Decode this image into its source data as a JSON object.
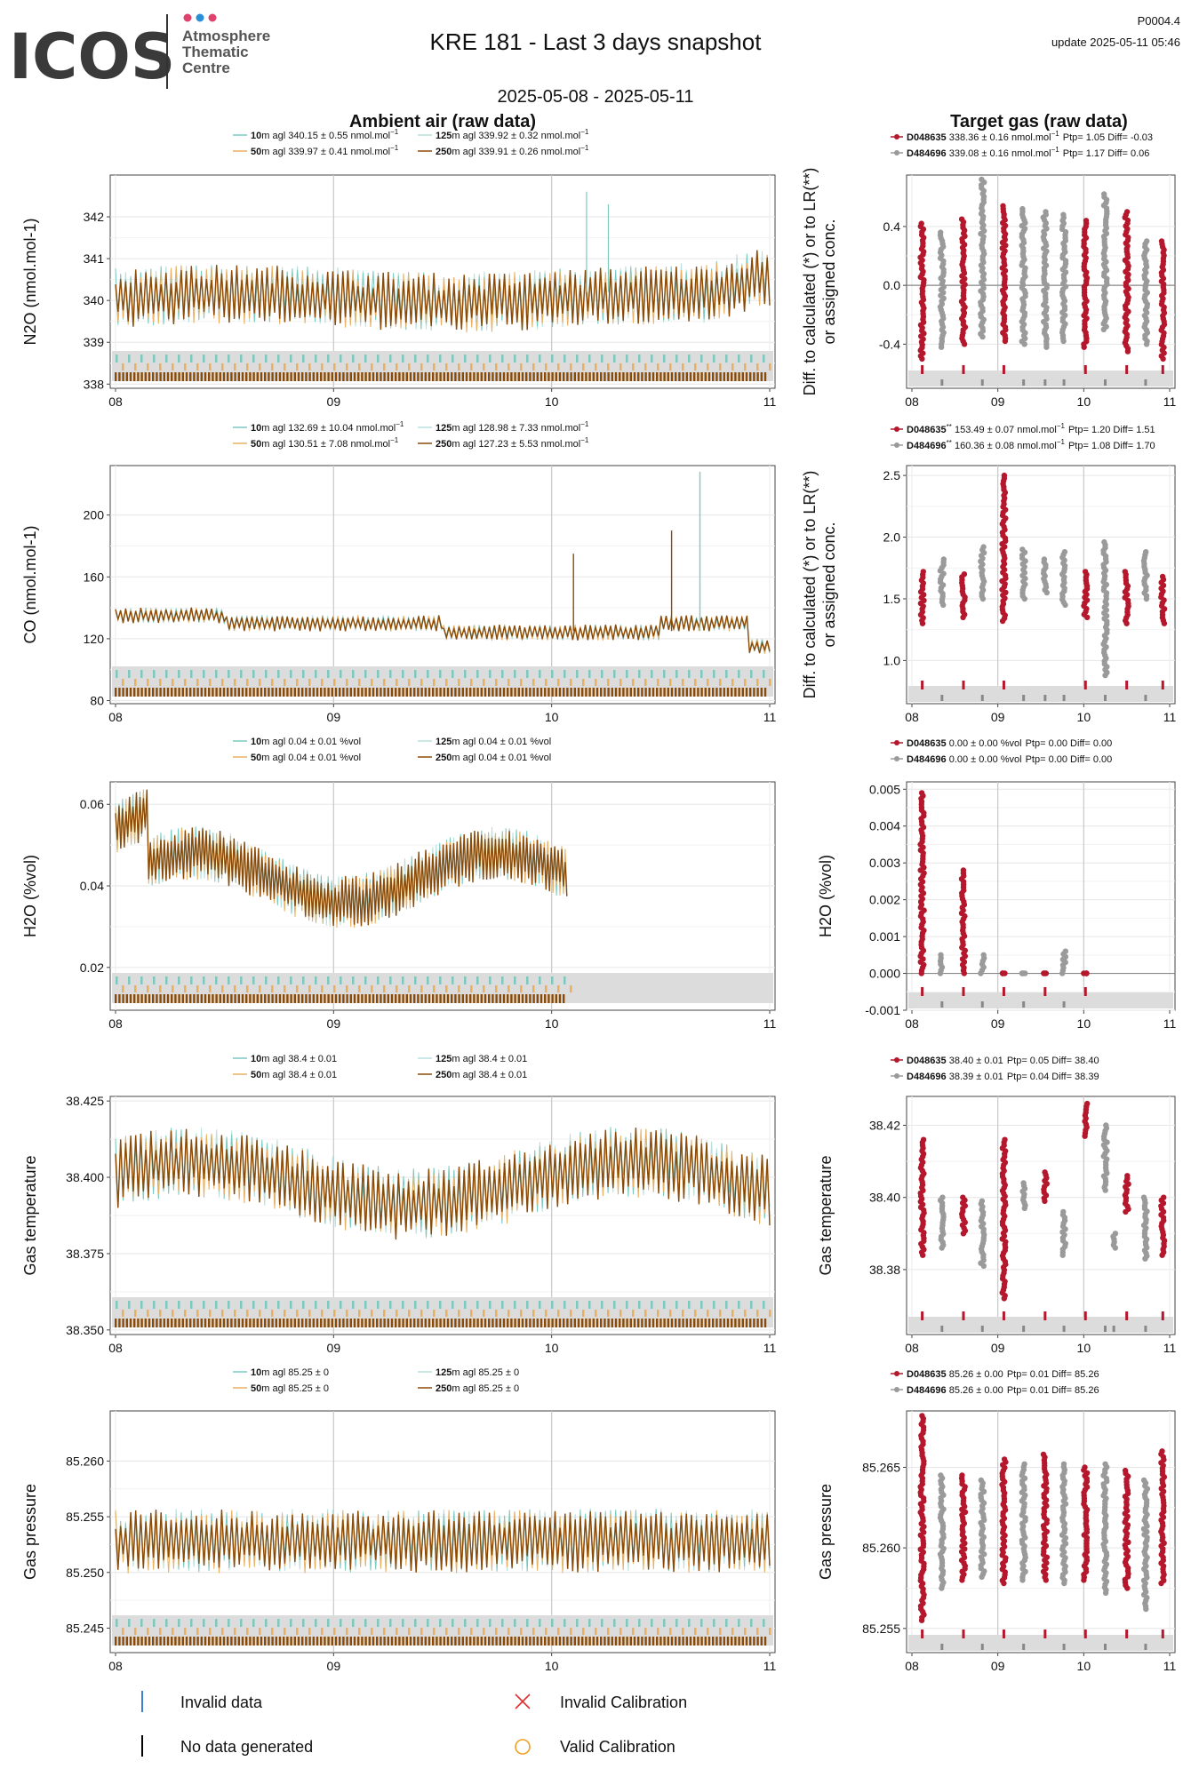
{
  "header": {
    "logo_text": "ICOS",
    "logo_sub": [
      "Atmosphere",
      "Thematic",
      "Centre"
    ],
    "title": "KRE 181 - Last 3 days snapshot",
    "date_range": "2025-05-08 - 2025-05-11",
    "product_id": "P0004.4",
    "update_label": "update  2025-05-11 05:46",
    "left_heading": "Ambient air (raw data)",
    "right_heading": "Target gas (raw data)"
  },
  "colors": {
    "agl10": "#7cc9c0",
    "agl50": "#e8b063",
    "agl125": "#b9e0dc",
    "agl250": "#8a4b08",
    "tank1": "#b5172c",
    "tank2": "#9a9a9a",
    "invalid": "#3a7fd0",
    "nodata": "#000000",
    "invalid_cal": "#e03030",
    "valid_cal": "#f0a020",
    "band": "#dcdcdc"
  },
  "bottom_legend": {
    "invalid_data": "Invalid data",
    "no_data": "No data generated",
    "invalid_cal": "Invalid Calibration",
    "valid_cal": "Valid Calibration"
  },
  "chart_data": [
    {
      "id": "n2o-ambient",
      "type": "line",
      "ylabel": "N2O (nmol.mol-1)",
      "xticks": [
        "08",
        "09",
        "10",
        "11"
      ],
      "xlim": [
        0,
        3
      ],
      "ylim": [
        337.9,
        343.0
      ],
      "yticks": [
        338,
        339,
        340,
        341,
        342
      ],
      "band_end": 3,
      "base": 340.05,
      "amp": 0.55,
      "legend": [
        {
          "height": "10",
          "text": "m agl 340.15 ± 0.55 nmol.mol",
          "sup": "−1"
        },
        {
          "height": "125",
          "text": "m agl 339.92 ± 0.32 nmol.mol",
          "sup": "−1"
        },
        {
          "height": "50",
          "text": "m agl 339.97 ± 0.41 nmol.mol",
          "sup": "−1"
        },
        {
          "height": "250",
          "text": "m agl 339.91 ± 0.26 nmol.mol",
          "sup": "−1"
        }
      ]
    },
    {
      "id": "n2o-target",
      "type": "scatter",
      "ylabel": "Diff. to calculated (*) or to LR(**)",
      "ylabel2": "or assigned conc.",
      "xticks": [
        "08",
        "09",
        "10",
        "11"
      ],
      "xlim": [
        0,
        3
      ],
      "ylim": [
        -0.7,
        0.75
      ],
      "yticks": [
        -0.4,
        0.0,
        0.4
      ],
      "ytick_labels": [
        "-0.4",
        "0.0",
        "0.4"
      ],
      "zero_line": 0.0,
      "legend": [
        {
          "tank": "D048635",
          "text": "338.36 ± 0.16 nmol.mol",
          "sup": "−1",
          "extra": "Ptp= 1.05 Diff= -0.03"
        },
        {
          "tank": "D484696",
          "text": "339.08 ± 0.16 nmol.mol",
          "sup": "−1",
          "extra": "Ptp= 1.17 Diff= 0.06"
        }
      ],
      "groups": [
        {
          "x": 0.12,
          "tank": 1,
          "lo": -0.5,
          "hi": 0.42
        },
        {
          "x": 0.35,
          "tank": 2,
          "lo": -0.42,
          "hi": 0.36
        },
        {
          "x": 0.6,
          "tank": 1,
          "lo": -0.4,
          "hi": 0.45
        },
        {
          "x": 0.82,
          "tank": 2,
          "lo": -0.35,
          "hi": 0.72
        },
        {
          "x": 1.07,
          "tank": 1,
          "lo": -0.38,
          "hi": 0.54
        },
        {
          "x": 1.3,
          "tank": 2,
          "lo": -0.4,
          "hi": 0.52
        },
        {
          "x": 1.55,
          "tank": 2,
          "lo": -0.42,
          "hi": 0.5
        },
        {
          "x": 1.77,
          "tank": 2,
          "lo": -0.38,
          "hi": 0.48
        },
        {
          "x": 2.02,
          "tank": 1,
          "lo": -0.42,
          "hi": 0.44
        },
        {
          "x": 2.25,
          "tank": 2,
          "lo": -0.3,
          "hi": 0.62
        },
        {
          "x": 2.5,
          "tank": 1,
          "lo": -0.45,
          "hi": 0.5
        },
        {
          "x": 2.72,
          "tank": 2,
          "lo": -0.4,
          "hi": 0.3
        },
        {
          "x": 2.92,
          "tank": 1,
          "lo": -0.5,
          "hi": 0.3
        }
      ]
    },
    {
      "id": "co-ambient",
      "type": "line",
      "ylabel": "CO (nmol.mol-1)",
      "xticks": [
        "08",
        "09",
        "10",
        "11"
      ],
      "xlim": [
        0,
        3
      ],
      "ylim": [
        78,
        232
      ],
      "yticks": [
        80,
        120,
        160,
        200
      ],
      "band_end": 3,
      "base": 130,
      "amp": 4,
      "legend": [
        {
          "height": "10",
          "text": "m agl 132.69 ± 10.04 nmol.mol",
          "sup": "−1"
        },
        {
          "height": "125",
          "text": "m agl 128.98 ± 7.33 nmol.mol",
          "sup": "−1"
        },
        {
          "height": "50",
          "text": "m agl 130.51 ± 7.08 nmol.mol",
          "sup": "−1"
        },
        {
          "height": "250",
          "text": "m agl 127.23 ± 5.53 nmol.mol",
          "sup": "−1"
        }
      ]
    },
    {
      "id": "co-target",
      "type": "scatter",
      "ylabel": "Diff. to calculated (*) or to LR(**)",
      "ylabel2": "or assigned conc.",
      "xticks": [
        "08",
        "09",
        "10",
        "11"
      ],
      "xlim": [
        0,
        3
      ],
      "ylim": [
        0.65,
        2.58
      ],
      "yticks": [
        1.0,
        1.5,
        2.0,
        2.5
      ],
      "ytick_labels": [
        "1.0",
        "1.5",
        "2.0",
        "2.5"
      ],
      "legend": [
        {
          "tank": "D048635",
          "stars": "**",
          "text": "153.49 ± 0.07 nmol.mol",
          "sup": "−1",
          "extra": "Ptp= 1.20 Diff= 1.51"
        },
        {
          "tank": "D484696",
          "stars": "**",
          "text": "160.36 ± 0.08 nmol.mol",
          "sup": "−1",
          "extra": "Ptp= 1.08 Diff= 1.70"
        }
      ],
      "groups": [
        {
          "x": 0.12,
          "tank": 1,
          "lo": 1.3,
          "hi": 1.72
        },
        {
          "x": 0.35,
          "tank": 2,
          "lo": 1.45,
          "hi": 1.82
        },
        {
          "x": 0.6,
          "tank": 1,
          "lo": 1.35,
          "hi": 1.7
        },
        {
          "x": 0.82,
          "tank": 2,
          "lo": 1.5,
          "hi": 1.92
        },
        {
          "x": 1.07,
          "tank": 1,
          "lo": 1.32,
          "hi": 2.5
        },
        {
          "x": 1.3,
          "tank": 2,
          "lo": 1.5,
          "hi": 1.9
        },
        {
          "x": 1.55,
          "tank": 2,
          "lo": 1.55,
          "hi": 1.82
        },
        {
          "x": 1.77,
          "tank": 2,
          "lo": 1.45,
          "hi": 1.88
        },
        {
          "x": 2.02,
          "tank": 1,
          "lo": 1.35,
          "hi": 1.72
        },
        {
          "x": 2.25,
          "tank": 2,
          "lo": 0.88,
          "hi": 1.96
        },
        {
          "x": 2.5,
          "tank": 1,
          "lo": 1.3,
          "hi": 1.72
        },
        {
          "x": 2.72,
          "tank": 2,
          "lo": 1.5,
          "hi": 1.88
        },
        {
          "x": 2.92,
          "tank": 1,
          "lo": 1.3,
          "hi": 1.68
        }
      ]
    },
    {
      "id": "h2o-ambient",
      "type": "line",
      "ylabel": "H2O (%vol)",
      "xticks": [
        "08",
        "09",
        "10",
        "11"
      ],
      "xlim": [
        0,
        3
      ],
      "ylim": [
        0.0095,
        0.0655
      ],
      "yticks": [
        0.02,
        0.04,
        0.06
      ],
      "ytick_labels": [
        "0.02",
        "0.04",
        "0.06"
      ],
      "band_end": 2.07,
      "base": 0.042,
      "amp": 0.005,
      "legend": [
        {
          "height": "10",
          "text": "m agl 0.04 ± 0.01 %vol",
          "sup": ""
        },
        {
          "height": "125",
          "text": "m agl 0.04 ± 0.01 %vol",
          "sup": ""
        },
        {
          "height": "50",
          "text": "m agl 0.04 ± 0.01 %vol",
          "sup": ""
        },
        {
          "height": "250",
          "text": "m agl 0.04 ± 0.01 %vol",
          "sup": ""
        }
      ]
    },
    {
      "id": "h2o-target",
      "type": "scatter",
      "ylabel": "H2O (%vol)",
      "xticks": [
        "08",
        "09",
        "10",
        "11"
      ],
      "xlim": [
        0,
        3
      ],
      "ylim": [
        -0.001,
        0.0052
      ],
      "yticks": [
        -0.001,
        0.0,
        0.001,
        0.002,
        0.003,
        0.004,
        0.005
      ],
      "ytick_labels": [
        "-0.001",
        "0.000",
        "0.001",
        "0.002",
        "0.003",
        "0.004",
        "0.005"
      ],
      "zero_line": 0.0,
      "legend": [
        {
          "tank": "D048635",
          "text": "0.00 ± 0.00 %vol",
          "sup": "",
          "extra": "Ptp= 0.00 Diff= 0.00"
        },
        {
          "tank": "D484696",
          "text": "0.00 ± 0.00 %vol",
          "sup": "",
          "extra": "Ptp= 0.00 Diff= 0.00"
        }
      ],
      "groups": [
        {
          "x": 0.12,
          "tank": 1,
          "lo": 0.0,
          "hi": 0.0049
        },
        {
          "x": 0.35,
          "tank": 2,
          "lo": 0.0,
          "hi": 0.0005
        },
        {
          "x": 0.6,
          "tank": 1,
          "lo": 0.0,
          "hi": 0.0028
        },
        {
          "x": 0.82,
          "tank": 2,
          "lo": 0.0,
          "hi": 0.0005
        },
        {
          "x": 1.07,
          "tank": 1,
          "lo": 0.0,
          "hi": 0.0
        },
        {
          "x": 1.3,
          "tank": 2,
          "lo": 0.0,
          "hi": 0.0
        },
        {
          "x": 1.55,
          "tank": 1,
          "lo": 0.0,
          "hi": 0.0
        },
        {
          "x": 1.77,
          "tank": 2,
          "lo": 0.0,
          "hi": 0.0006
        },
        {
          "x": 2.02,
          "tank": 1,
          "lo": 0.0,
          "hi": 0.0
        }
      ]
    },
    {
      "id": "temp-ambient",
      "type": "line",
      "ylabel": "Gas temperature",
      "xticks": [
        "08",
        "09",
        "10",
        "11"
      ],
      "xlim": [
        0,
        3
      ],
      "ylim": [
        38.3485,
        38.4265
      ],
      "yticks": [
        38.35,
        38.375,
        38.4,
        38.425
      ],
      "ytick_labels": [
        "38.350",
        "38.375",
        "38.400",
        "38.425"
      ],
      "band_end": 3,
      "base": 38.398,
      "amp": 0.009,
      "legend": [
        {
          "height": "10",
          "text": "m agl 38.4 ± 0.01",
          "sup": ""
        },
        {
          "height": "125",
          "text": "m agl 38.4 ± 0.01",
          "sup": ""
        },
        {
          "height": "50",
          "text": "m agl 38.4 ± 0.01",
          "sup": ""
        },
        {
          "height": "250",
          "text": "m agl 38.4 ± 0.01",
          "sup": ""
        }
      ]
    },
    {
      "id": "temp-target",
      "type": "scatter",
      "ylabel": "Gas temperature",
      "xticks": [
        "08",
        "09",
        "10",
        "11"
      ],
      "xlim": [
        0,
        3
      ],
      "ylim": [
        38.362,
        38.428
      ],
      "yticks": [
        38.38,
        38.4,
        38.42
      ],
      "ytick_labels": [
        "38.38",
        "38.40",
        "38.42"
      ],
      "legend": [
        {
          "tank": "D048635",
          "text": "38.40 ± 0.01",
          "sup": "",
          "extra": "Ptp= 0.05 Diff= 38.40"
        },
        {
          "tank": "D484696",
          "text": "38.39 ± 0.01",
          "sup": "",
          "extra": "Ptp= 0.04 Diff= 38.39"
        }
      ],
      "groups": [
        {
          "x": 0.12,
          "tank": 1,
          "lo": 38.384,
          "hi": 38.416
        },
        {
          "x": 0.35,
          "tank": 2,
          "lo": 38.386,
          "hi": 38.4
        },
        {
          "x": 0.6,
          "tank": 1,
          "lo": 38.39,
          "hi": 38.4
        },
        {
          "x": 0.82,
          "tank": 2,
          "lo": 38.381,
          "hi": 38.399
        },
        {
          "x": 1.07,
          "tank": 1,
          "lo": 38.372,
          "hi": 38.416
        },
        {
          "x": 1.3,
          "tank": 2,
          "lo": 38.397,
          "hi": 38.404
        },
        {
          "x": 1.55,
          "tank": 1,
          "lo": 38.399,
          "hi": 38.407
        },
        {
          "x": 1.77,
          "tank": 2,
          "lo": 38.384,
          "hi": 38.396
        },
        {
          "x": 2.02,
          "tank": 1,
          "lo": 38.417,
          "hi": 38.426
        },
        {
          "x": 2.25,
          "tank": 2,
          "lo": 38.402,
          "hi": 38.42
        },
        {
          "x": 2.35,
          "tank": 2,
          "lo": 38.386,
          "hi": 38.39
        },
        {
          "x": 2.5,
          "tank": 1,
          "lo": 38.396,
          "hi": 38.406
        },
        {
          "x": 2.72,
          "tank": 2,
          "lo": 38.383,
          "hi": 38.4
        },
        {
          "x": 2.92,
          "tank": 1,
          "lo": 38.384,
          "hi": 38.4
        }
      ]
    },
    {
      "id": "pres-ambient",
      "type": "line",
      "ylabel": "Gas pressure",
      "xticks": [
        "08",
        "09",
        "10",
        "11"
      ],
      "xlim": [
        0,
        3
      ],
      "ylim": [
        85.2428,
        85.2645
      ],
      "yticks": [
        85.245,
        85.25,
        85.255,
        85.26
      ],
      "ytick_labels": [
        "85.245",
        "85.250",
        "85.255",
        "85.260"
      ],
      "band_end": 3,
      "base": 85.2528,
      "amp": 0.0022,
      "legend": [
        {
          "height": "10",
          "text": "m agl 85.25 ± 0",
          "sup": ""
        },
        {
          "height": "125",
          "text": "m agl 85.25 ± 0",
          "sup": ""
        },
        {
          "height": "50",
          "text": "m agl 85.25 ± 0",
          "sup": ""
        },
        {
          "height": "250",
          "text": "m agl 85.25 ± 0",
          "sup": ""
        }
      ]
    },
    {
      "id": "pres-target",
      "type": "scatter",
      "ylabel": "Gas pressure",
      "xticks": [
        "08",
        "09",
        "10",
        "11"
      ],
      "xlim": [
        0,
        3
      ],
      "ylim": [
        85.2535,
        85.2685
      ],
      "yticks": [
        85.255,
        85.26,
        85.265
      ],
      "ytick_labels": [
        "85.255",
        "85.260",
        "85.265"
      ],
      "legend": [
        {
          "tank": "D048635",
          "text": "85.26 ± 0.00",
          "sup": "",
          "extra": "Ptp= 0.01 Diff= 85.26"
        },
        {
          "tank": "D484696",
          "text": "85.26 ± 0.00",
          "sup": "",
          "extra": "Ptp= 0.01 Diff= 85.26"
        }
      ],
      "groups": [
        {
          "x": 0.12,
          "tank": 1,
          "lo": 85.2555,
          "hi": 85.2682
        },
        {
          "x": 0.35,
          "tank": 2,
          "lo": 85.2575,
          "hi": 85.2645
        },
        {
          "x": 0.6,
          "tank": 1,
          "lo": 85.258,
          "hi": 85.2645
        },
        {
          "x": 0.82,
          "tank": 2,
          "lo": 85.2582,
          "hi": 85.2642
        },
        {
          "x": 1.07,
          "tank": 1,
          "lo": 85.2578,
          "hi": 85.2655
        },
        {
          "x": 1.3,
          "tank": 2,
          "lo": 85.258,
          "hi": 85.2652
        },
        {
          "x": 1.55,
          "tank": 1,
          "lo": 85.258,
          "hi": 85.2658
        },
        {
          "x": 1.77,
          "tank": 2,
          "lo": 85.2578,
          "hi": 85.2652
        },
        {
          "x": 2.02,
          "tank": 1,
          "lo": 85.258,
          "hi": 85.265
        },
        {
          "x": 2.25,
          "tank": 2,
          "lo": 85.2572,
          "hi": 85.2652
        },
        {
          "x": 2.5,
          "tank": 1,
          "lo": 85.2575,
          "hi": 85.2648
        },
        {
          "x": 2.72,
          "tank": 2,
          "lo": 85.2562,
          "hi": 85.2642
        },
        {
          "x": 2.92,
          "tank": 1,
          "lo": 85.2578,
          "hi": 85.266
        }
      ]
    }
  ]
}
